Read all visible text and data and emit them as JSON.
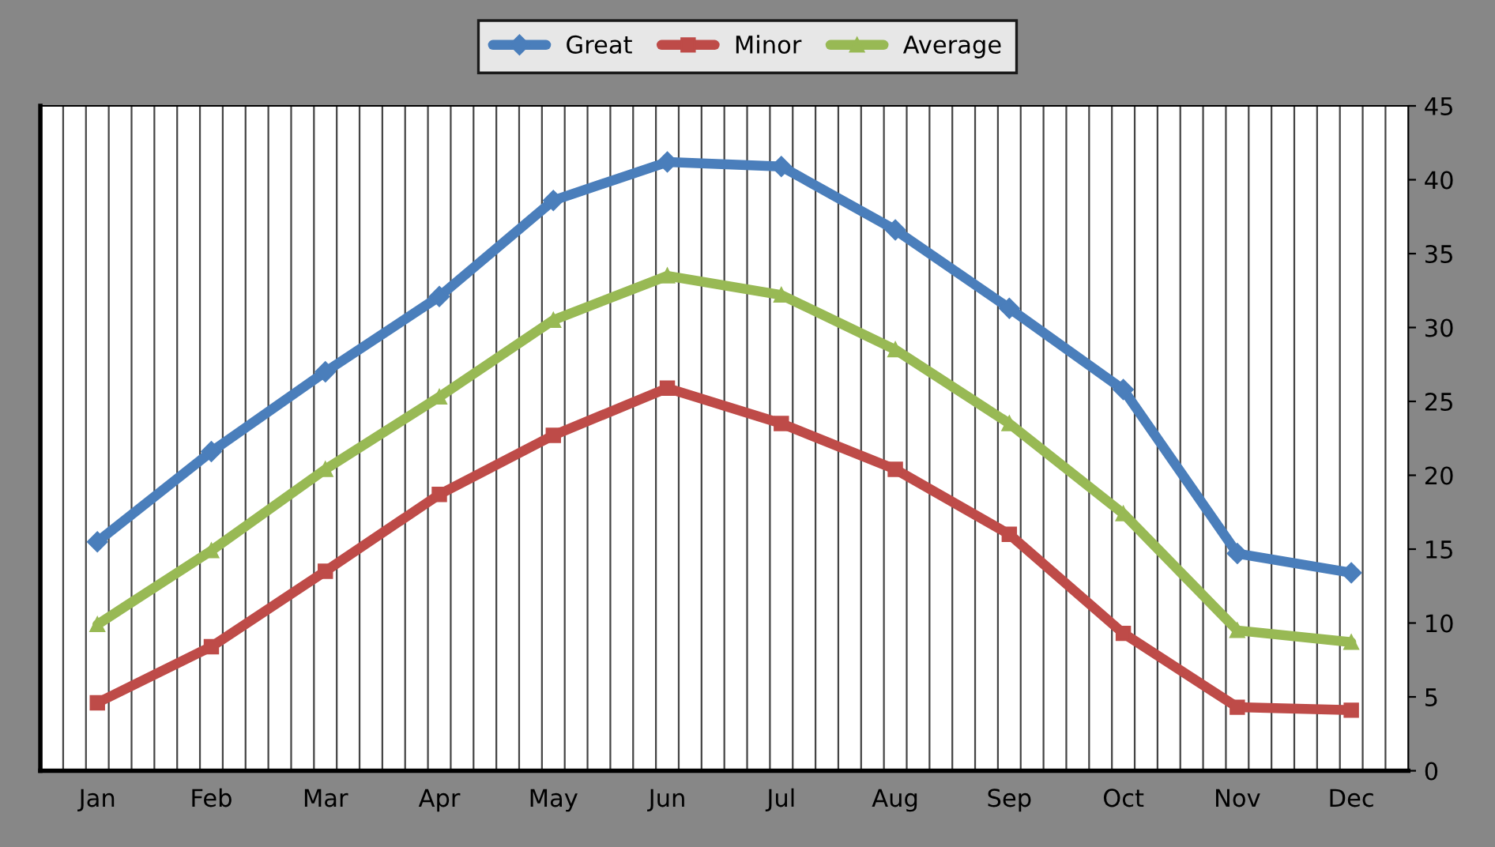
{
  "chart_data": {
    "type": "line",
    "categories": [
      "Jan",
      "Feb",
      "Mar",
      "Apr",
      "May",
      "Jun",
      "Jul",
      "Aug",
      "Sep",
      "Oct",
      "Nov",
      "Dec"
    ],
    "series": [
      {
        "name": "Great",
        "color": "#4a7ebb",
        "marker": "diamond",
        "values": [
          15.5,
          21.6,
          27.0,
          32.1,
          38.6,
          41.2,
          40.9,
          36.6,
          31.3,
          25.8,
          14.7,
          13.4
        ]
      },
      {
        "name": "Minor",
        "color": "#be4b48",
        "marker": "square",
        "values": [
          4.6,
          8.4,
          13.5,
          18.7,
          22.7,
          25.9,
          23.5,
          20.4,
          16.0,
          9.3,
          4.3,
          4.1
        ]
      },
      {
        "name": "Average",
        "color": "#98b954",
        "marker": "triangle",
        "values": [
          9.9,
          14.9,
          20.4,
          25.3,
          30.5,
          33.5,
          32.2,
          28.5,
          23.5,
          17.4,
          9.5,
          8.7
        ]
      }
    ],
    "ylim": [
      0,
      45
    ],
    "yticks": [
      0,
      5,
      10,
      15,
      20,
      25,
      30,
      35,
      40,
      45
    ],
    "grid": "x",
    "legend": "top",
    "line_style": "solid"
  }
}
